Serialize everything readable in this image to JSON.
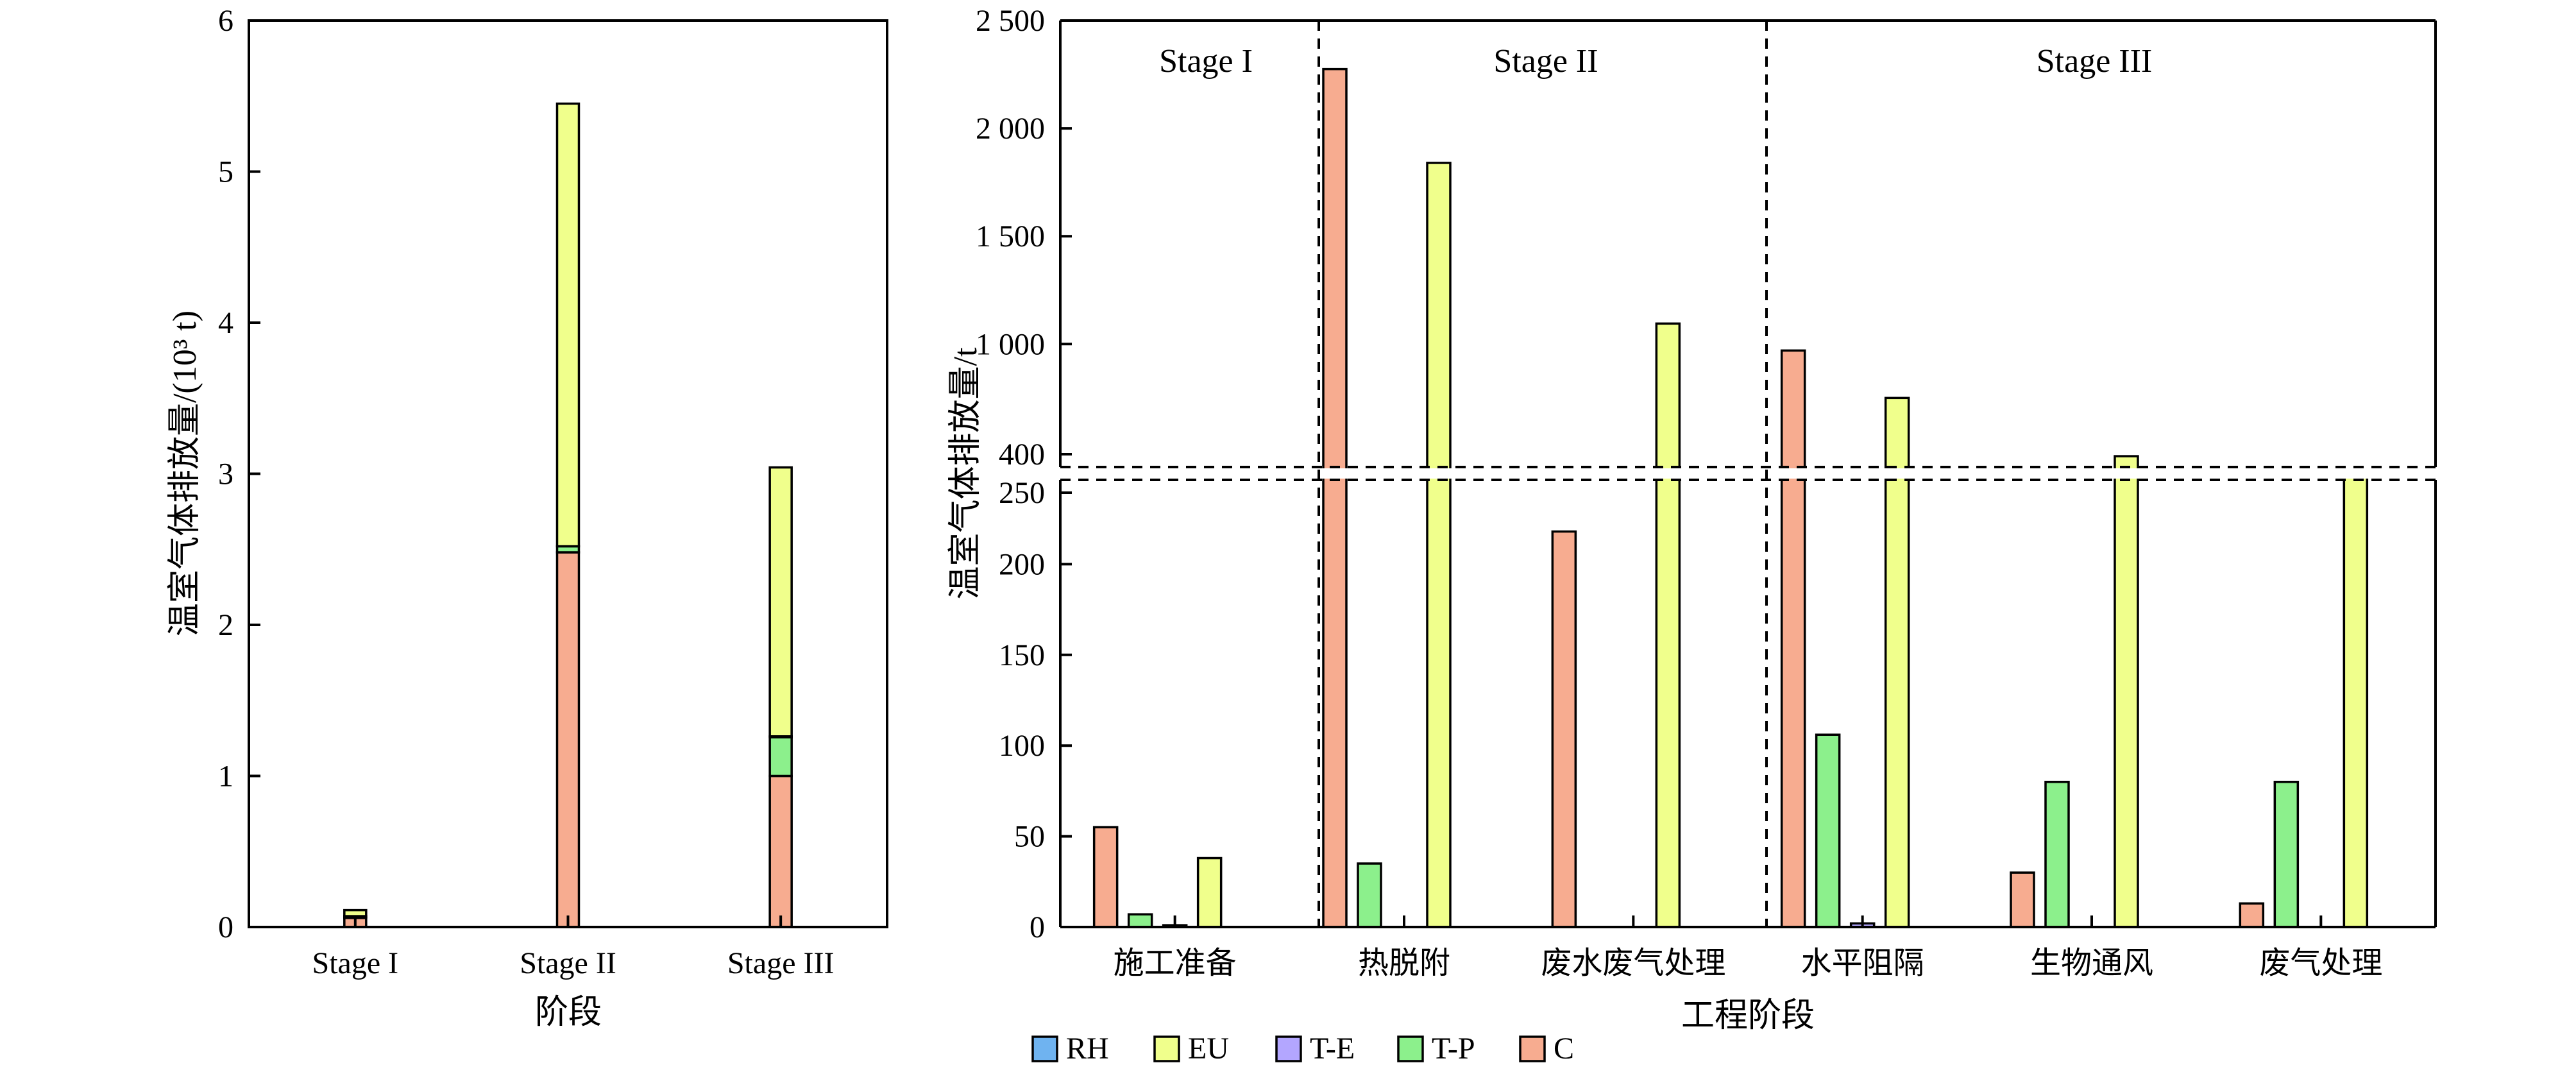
{
  "colors": {
    "RH": "#6fb3f0",
    "EU": "#f0ff8c",
    "T-E": "#b3a6ff",
    "T-P": "#8cf08c",
    "C": "#f7ac90"
  },
  "legend": [
    {
      "key": "RH",
      "label": "RH"
    },
    {
      "key": "EU",
      "label": "EU"
    },
    {
      "key": "T-E",
      "label": "T-E"
    },
    {
      "key": "T-P",
      "label": "T-P"
    },
    {
      "key": "C",
      "label": "C"
    }
  ],
  "chart_data": [
    {
      "type": "bar",
      "stacked": true,
      "xlabel": "阶段",
      "ylabel": "温室气体排放量/(10³ t)",
      "ylim": [
        0,
        6
      ],
      "yticks": [
        "0",
        "1",
        "2",
        "3",
        "4",
        "5",
        "6"
      ],
      "categories": [
        "Stage I",
        "Stage II",
        "Stage III"
      ],
      "series": [
        {
          "name": "C",
          "values": [
            0.06,
            2.48,
            1.0
          ]
        },
        {
          "name": "T-P",
          "values": [
            0.01,
            0.04,
            0.26
          ]
        },
        {
          "name": "T-E",
          "values": [
            0.002,
            0.0,
            0.002
          ]
        },
        {
          "name": "EU",
          "values": [
            0.04,
            2.93,
            1.78
          ]
        },
        {
          "name": "RH",
          "values": [
            0.0,
            0.0,
            0.0
          ]
        }
      ],
      "grid": false
    },
    {
      "type": "bar",
      "stacked": false,
      "xlabel": "工程阶段",
      "ylabel": "温室气体排放量/t",
      "broken_axis": {
        "lower_range": [
          0,
          250
        ],
        "upper_range": [
          400,
          2500
        ]
      },
      "yticks_lower": [
        "0",
        "50",
        "100",
        "150",
        "200",
        "250"
      ],
      "yticks_upper": [
        "400",
        "1 000",
        "1 500",
        "2 000",
        "2 500"
      ],
      "categories": [
        "施工准备",
        "热脱附",
        "废水废气处理",
        "水平阻隔",
        "生物通风",
        "废气处理"
      ],
      "stage_labels": [
        "Stage I",
        "Stage II",
        "Stage III"
      ],
      "series": [
        {
          "name": "C",
          "values": [
            55,
            2275,
            218,
            970,
            30,
            13
          ]
        },
        {
          "name": "T-P",
          "values": [
            7,
            35,
            0,
            106,
            80,
            80
          ]
        },
        {
          "name": "T-E",
          "values": [
            1,
            0,
            0,
            2,
            0,
            0
          ]
        },
        {
          "name": "EU",
          "values": [
            38,
            1840,
            1095,
            750,
            480,
            415
          ]
        },
        {
          "name": "RH",
          "values": [
            0,
            0,
            0,
            0,
            0,
            0
          ]
        }
      ],
      "grid": false
    }
  ]
}
